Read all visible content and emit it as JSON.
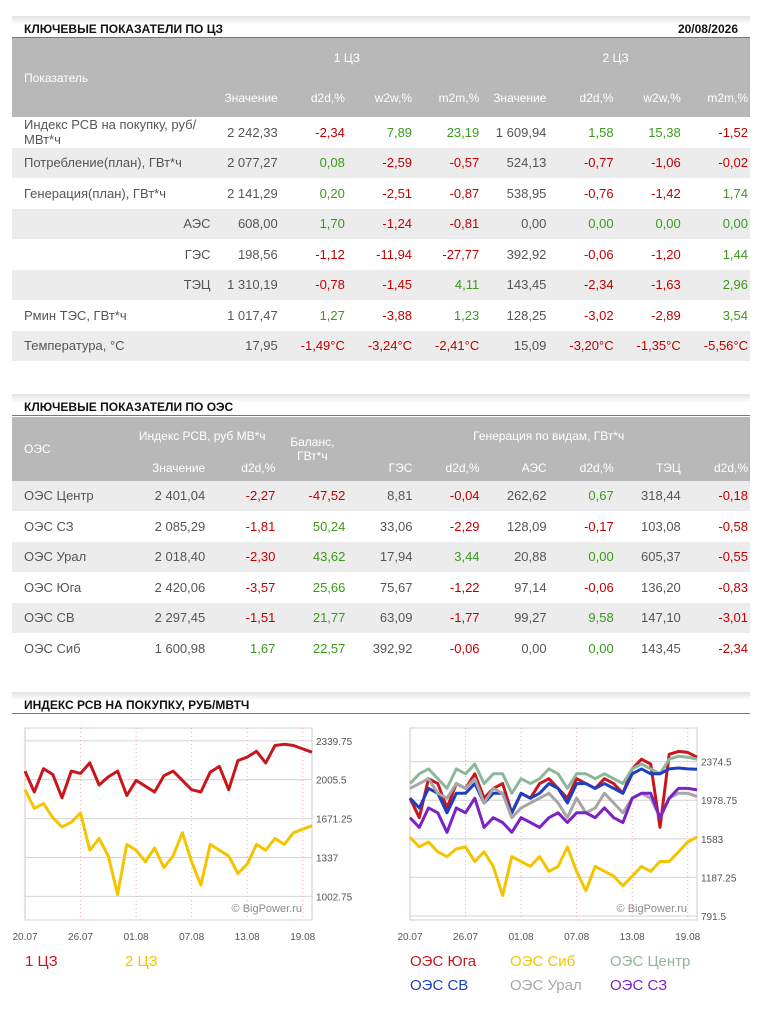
{
  "section1": {
    "title": "КЛЮЧЕВЫЕ ПОКАЗАТЕЛИ ПО ЦЗ",
    "date": "20/08/2026"
  },
  "table1": {
    "header": {
      "indicator": "Показатель",
      "groups": [
        "1 ЦЗ",
        "2 ЦЗ"
      ],
      "columns": [
        "Значение",
        "d2d,%",
        "w2w,%",
        "m2m,%",
        "Значение",
        "d2d,%",
        "w2w,%",
        "m2m,%"
      ]
    },
    "rows": [
      [
        "Индекс РСВ на покупку, руб/МВт*ч",
        "2 242,33",
        "-2,34",
        "7,89",
        "23,19",
        "1 609,94",
        "1,58",
        "15,38",
        "-1,52"
      ],
      [
        "Потребление(план), ГВт*ч",
        "2 077,27",
        "0,08",
        "-2,59",
        "-0,57",
        "524,13",
        "-0,77",
        "-1,06",
        "-0,02"
      ],
      [
        "Генерация(план), ГВт*ч",
        "2 141,29",
        "0,20",
        "-2,51",
        "-0,87",
        "538,95",
        "-0,76",
        "-1,42",
        "1,74"
      ],
      [
        "АЭС",
        "608,00",
        "1,70",
        "-1,24",
        "-0,81",
        "0,00",
        "0,00",
        "0,00",
        "0,00"
      ],
      [
        "ГЭС",
        "198,56",
        "-1,12",
        "-11,94",
        "-27,77",
        "392,92",
        "-0,06",
        "-1,20",
        "1,44"
      ],
      [
        "ТЭЦ",
        "1 310,19",
        "-0,78",
        "-1,45",
        "4,11",
        "143,45",
        "-2,34",
        "-1,63",
        "2,96"
      ],
      [
        "Рмин ТЭС, ГВт*ч",
        "1 017,47",
        "1,27",
        "-3,88",
        "1,23",
        "128,25",
        "-3,02",
        "-2,89",
        "3,54"
      ],
      [
        "Температура, °C",
        "17,95",
        "-1,49°C",
        "-3,24°C",
        "-2,41°C",
        "15,09",
        "-3,20°C",
        "-1,35°C",
        "-5,56°C"
      ]
    ]
  },
  "section2": {
    "title": "КЛЮЧЕВЫЕ ПОКАЗАТЕЛИ ПО ОЭС"
  },
  "table2": {
    "header": {
      "oes": "ОЭС",
      "index": "Индекс РСВ, руб МВ*ч",
      "balance": "Баланс, ГВт*ч",
      "generation": "Генерация по видам, ГВт*ч",
      "columns": [
        "Значение",
        "d2d,%",
        "ГЭС",
        "d2d,%",
        "АЭС",
        "d2d,%",
        "ТЭЦ",
        "d2d,%"
      ]
    },
    "rows": [
      [
        "ОЭС Центр",
        "2 401,04",
        "-2,27",
        "-47,52",
        "8,81",
        "-0,04",
        "262,62",
        "0,67",
        "318,44",
        "-0,18"
      ],
      [
        "ОЭС СЗ",
        "2 085,29",
        "-1,81",
        "50,24",
        "33,06",
        "-2,29",
        "128,09",
        "-0,17",
        "103,08",
        "-0,58"
      ],
      [
        "ОЭС Урал",
        "2 018,40",
        "-2,30",
        "43,62",
        "17,94",
        "3,44",
        "20,88",
        "0,00",
        "605,37",
        "-0,55"
      ],
      [
        "ОЭС Юга",
        "2 420,06",
        "-3,57",
        "25,66",
        "75,67",
        "-1,22",
        "97,14",
        "-0,06",
        "136,20",
        "-0,83"
      ],
      [
        "ОЭС СВ",
        "2 297,45",
        "-1,51",
        "21,77",
        "63,09",
        "-1,77",
        "99,27",
        "9,58",
        "147,10",
        "-3,01"
      ],
      [
        "ОЭС Сиб",
        "1 600,98",
        "1,67",
        "22,57",
        "392,92",
        "-0,06",
        "0,00",
        "0,00",
        "143,45",
        "-2,34"
      ]
    ]
  },
  "section3": {
    "title": "ИНДЕКС РСВ НА ПОКУПКУ, РУБ/МВТЧ"
  },
  "chart_data": [
    {
      "type": "line",
      "watermark": "© BigPower.ru",
      "grid": true,
      "categories": [
        "20.07",
        null,
        null,
        null,
        null,
        null,
        "26.07",
        null,
        null,
        null,
        null,
        null,
        "01.08",
        null,
        null,
        null,
        null,
        null,
        "07.08",
        null,
        null,
        null,
        null,
        null,
        "13.08",
        null,
        null,
        null,
        null,
        null,
        "19.08",
        null
      ],
      "ylim": [
        800,
        2450
      ],
      "yticks": [
        2339.75,
        2005.5,
        1671.25,
        1337,
        1002.75
      ],
      "series": [
        {
          "name": "1 ЦЗ",
          "color": "#c8161d",
          "values": [
            2080,
            1900,
            2100,
            2050,
            1850,
            2080,
            2060,
            2150,
            1960,
            2030,
            2080,
            1870,
            2000,
            1950,
            1900,
            2040,
            2080,
            2000,
            1920,
            1900,
            2070,
            2120,
            1920,
            2170,
            2200,
            2250,
            2150,
            2300,
            2310,
            2300,
            2270,
            2242.33
          ]
        },
        {
          "name": "2 ЦЗ",
          "color": "#f5c400",
          "values": [
            1920,
            1760,
            1800,
            1680,
            1600,
            1640,
            1720,
            1400,
            1500,
            1350,
            1020,
            1450,
            1400,
            1300,
            1420,
            1250,
            1350,
            1550,
            1300,
            1100,
            1450,
            1400,
            1350,
            1200,
            1280,
            1450,
            1400,
            1500,
            1450,
            1550,
            1580,
            1609.94
          ]
        }
      ]
    },
    {
      "type": "line",
      "watermark": "© BigPower.ru",
      "grid": true,
      "categories": [
        "20.07",
        null,
        null,
        null,
        null,
        null,
        "26.07",
        null,
        null,
        null,
        null,
        null,
        "01.08",
        null,
        null,
        null,
        null,
        null,
        "07.08",
        null,
        null,
        null,
        null,
        null,
        "13.08",
        null,
        null,
        null,
        null,
        null,
        "19.08",
        null
      ],
      "ylim": [
        750,
        2720
      ],
      "yticks": [
        2374.5,
        1978.75,
        1583,
        1187.25,
        791.5
      ],
      "series": [
        {
          "name": "ОЭС Юга",
          "color": "#c8161d",
          "values": [
            2000,
            1800,
            2200,
            2150,
            1900,
            2150,
            2100,
            2250,
            2000,
            2100,
            2150,
            1850,
            2050,
            2000,
            2150,
            2200,
            2100,
            2000,
            2200,
            2150,
            2100,
            2200,
            2150,
            2050,
            2300,
            2400,
            2350,
            1700,
            2450,
            2480,
            2470,
            2420.06
          ]
        },
        {
          "name": "ОЭС Сиб",
          "color": "#f5c400",
          "values": [
            1600,
            1500,
            1550,
            1450,
            1400,
            1480,
            1500,
            1350,
            1450,
            1300,
            1000,
            1400,
            1350,
            1300,
            1400,
            1250,
            1300,
            1500,
            1250,
            1050,
            1300,
            1250,
            1200,
            1100,
            1200,
            1300,
            1250,
            1350,
            1350,
            1450,
            1550,
            1600.98
          ]
        },
        {
          "name": "ОЭС Центр",
          "color": "#8db79a",
          "values": [
            2150,
            2250,
            2300,
            2200,
            2100,
            2300,
            2250,
            2350,
            2150,
            2250,
            2250,
            2050,
            2200,
            2150,
            2200,
            2300,
            2250,
            2100,
            2250,
            2250,
            2200,
            2250,
            2200,
            2150,
            2300,
            2350,
            2300,
            2250,
            2400,
            2430,
            2420,
            2401.04
          ]
        },
        {
          "name": "ОЭС СВ",
          "color": "#1f3fc1",
          "values": [
            2000,
            1900,
            2100,
            2050,
            1850,
            2050,
            2050,
            2150,
            1950,
            2050,
            2050,
            1850,
            2050,
            2000,
            2050,
            2150,
            2100,
            1950,
            2150,
            2150,
            2100,
            2150,
            2100,
            2050,
            2250,
            2300,
            2250,
            2250,
            2300,
            2310,
            2300,
            2297.45
          ]
        },
        {
          "name": "ОЭС Урал",
          "color": "#a6a6a6",
          "values": [
            2100,
            2150,
            2200,
            2050,
            2000,
            2150,
            2100,
            2200,
            1950,
            2100,
            2050,
            1800,
            1900,
            1950,
            2000,
            2050,
            1950,
            1800,
            2000,
            1850,
            1900,
            2050,
            1950,
            1850,
            2000,
            2050,
            2000,
            1800,
            2000,
            2050,
            2050,
            2018.4
          ]
        },
        {
          "name": "ОЭС СЗ",
          "color": "#7b22c6",
          "values": [
            1800,
            1700,
            1900,
            1850,
            1650,
            1900,
            1850,
            2000,
            1700,
            1800,
            1750,
            1650,
            1800,
            1750,
            1700,
            1800,
            1850,
            1750,
            1850,
            1850,
            1800,
            1900,
            1800,
            1750,
            2000,
            2050,
            2050,
            1800,
            2000,
            2100,
            2100,
            2085.29
          ]
        }
      ]
    }
  ]
}
